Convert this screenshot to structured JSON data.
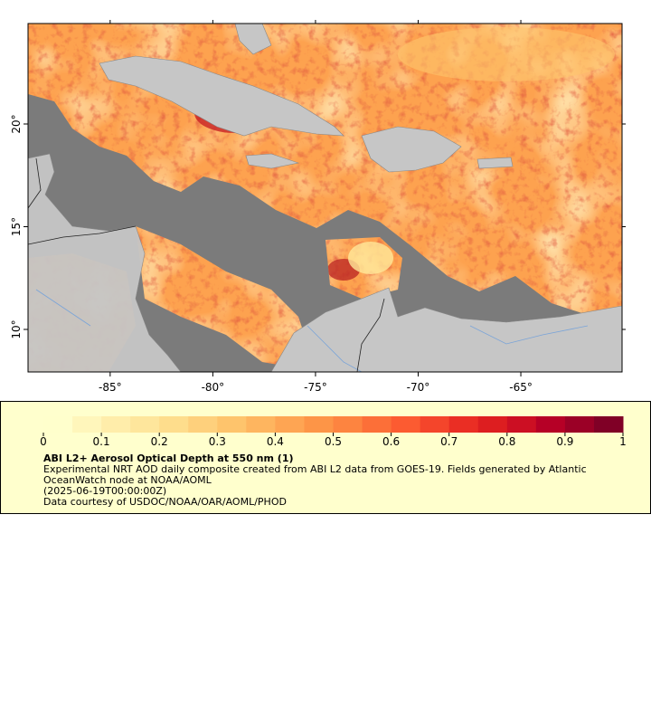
{
  "map": {
    "xlim": [
      -89,
      -60.07
    ],
    "ylim": [
      7.93,
      24.89
    ],
    "xticks": [
      {
        "value": -85,
        "label": "-85°"
      },
      {
        "value": -80,
        "label": "-80°"
      },
      {
        "value": -75,
        "label": "-75°"
      },
      {
        "value": -70,
        "label": "-70°"
      },
      {
        "value": -65,
        "label": "-65°"
      }
    ],
    "yticks": [
      {
        "value": 10,
        "label": "10°"
      },
      {
        "value": 15,
        "label": "15°"
      },
      {
        "value": 20,
        "label": "20°"
      }
    ]
  },
  "colorbar": {
    "lim": [
      0,
      1
    ],
    "ticks": [
      0,
      0.1,
      0.2,
      0.3,
      0.4,
      0.5,
      0.6,
      0.7,
      0.8,
      0.9,
      1
    ],
    "colors": [
      "#ffffcc",
      "#fff6bb",
      "#ffedaa",
      "#fee69c",
      "#fedd8c",
      "#fed07c",
      "#fec46c",
      "#feb55f",
      "#fea553",
      "#fd9547",
      "#fd8440",
      "#fc6f38",
      "#fc5b31",
      "#f4452b",
      "#ea2e24",
      "#dd1e20",
      "#cc0f23",
      "#b60026",
      "#9b0026",
      "#800026"
    ]
  },
  "legend": {
    "title": "ABI L2+ Aerosol Optical Depth at 550 nm (1)",
    "description": "Experimental NRT AOD daily composite created from ABI L2 data from GOES-19. Fields generated by Atlantic OceanWatch node at NOAA/AOML",
    "date": "(2025-06-19T00:00:00Z)",
    "credit": "Data courtesy of USDOC/NOAA/OAR/AOML/PHOD"
  }
}
